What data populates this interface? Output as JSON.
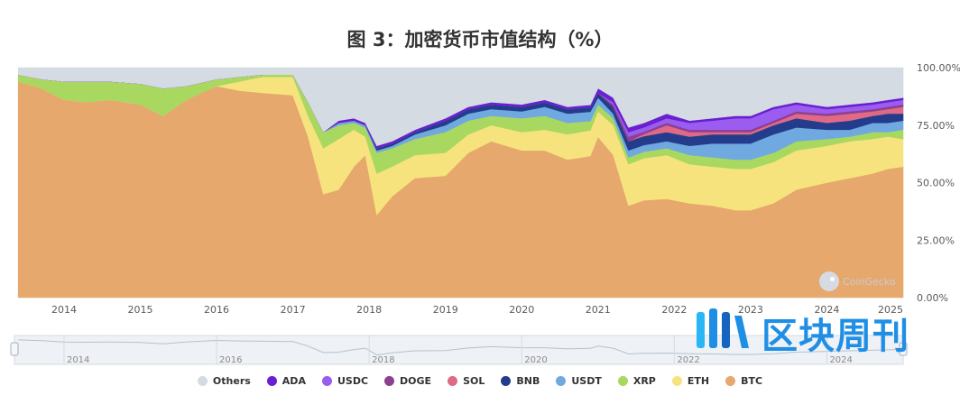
{
  "title": "图 3：加密货币市值结构（%）",
  "watermark": "CoinGecko",
  "brand": "区块周刊",
  "colors": {
    "Others": "#d5dbe3",
    "ADA": "#6a1fd1",
    "USDC": "#9b5cf0",
    "DOGE": "#8e3f91",
    "SOL": "#e06a86",
    "BNB": "#233d8c",
    "USDT": "#6fa9e0",
    "XRP": "#a9d861",
    "ETH": "#f7e37e",
    "BTC": "#e6a86c"
  },
  "chart_data": {
    "type": "area",
    "stacked": true,
    "percent": true,
    "x_axis_ticks": [
      "2014",
      "2015",
      "2016",
      "2017",
      "2018",
      "2019",
      "2020",
      "2021",
      "2022",
      "2023",
      "2024",
      "2025"
    ],
    "y_axis_ticks": [
      "100.00%",
      "75.00%",
      "50.00%",
      "25.00%",
      "0.00%"
    ],
    "ylim": [
      0,
      100
    ],
    "y_axis_position": "right",
    "legend_position": "bottom",
    "navigator_ticks": [
      "2014",
      "2016",
      "2018",
      "2020",
      "2022",
      "2024"
    ],
    "x": [
      2013.4,
      2013.7,
      2014.0,
      2014.3,
      2014.6,
      2015.0,
      2015.3,
      2015.6,
      2016.0,
      2016.3,
      2016.6,
      2017.0,
      2017.2,
      2017.4,
      2017.6,
      2017.8,
      2017.95,
      2018.1,
      2018.3,
      2018.6,
      2019.0,
      2019.3,
      2019.6,
      2020.0,
      2020.3,
      2020.6,
      2020.9,
      2021.0,
      2021.2,
      2021.4,
      2021.6,
      2021.9,
      2022.2,
      2022.5,
      2022.8,
      2023.0,
      2023.3,
      2023.6,
      2024.0,
      2024.3,
      2024.6,
      2024.8,
      2025.0
    ],
    "series": [
      {
        "name": "BTC",
        "values": [
          94,
          91,
          86,
          85,
          86,
          84,
          79,
          86,
          92,
          90,
          89,
          88,
          70,
          45,
          47,
          57,
          62,
          36,
          44,
          52,
          53,
          63,
          68,
          64,
          64,
          60,
          61,
          70,
          62,
          40,
          44,
          43,
          41,
          40,
          38,
          38,
          41,
          47,
          50,
          52,
          54,
          56,
          57
        ]
      },
      {
        "name": "ETH",
        "values": [
          0,
          0,
          0,
          0,
          0,
          0,
          0,
          0,
          0,
          4,
          7,
          8,
          9,
          20,
          22,
          16,
          8,
          18,
          13,
          10,
          10,
          8,
          7,
          8,
          9,
          11,
          11,
          11,
          13,
          18,
          19,
          19,
          17,
          17,
          18,
          18,
          18,
          17,
          16,
          16,
          15,
          14,
          12
        ]
      },
      {
        "name": "XRP",
        "values": [
          3,
          4,
          8,
          9,
          8,
          9,
          12,
          6,
          3,
          2,
          1,
          1,
          6,
          7,
          6,
          3,
          4,
          9,
          8,
          7,
          9,
          6,
          4,
          6,
          6,
          5,
          4,
          3,
          3,
          3,
          3,
          3,
          4,
          4,
          4,
          4,
          4,
          4,
          3,
          2,
          3,
          2,
          4
        ]
      },
      {
        "name": "USDT",
        "values": [
          0,
          0,
          0,
          0,
          0,
          0,
          0,
          0,
          0,
          0,
          0,
          0,
          0,
          0,
          1,
          1,
          1,
          1,
          1,
          2,
          3,
          3,
          3,
          3,
          4,
          4,
          4,
          3,
          2,
          3,
          3,
          3,
          4,
          6,
          7,
          7,
          8,
          6,
          4,
          3,
          4,
          4,
          4
        ]
      },
      {
        "name": "BNB",
        "values": [
          0,
          0,
          0,
          0,
          0,
          0,
          0,
          0,
          0,
          0,
          0,
          0,
          0,
          0,
          0,
          0,
          0,
          1,
          1,
          1,
          2,
          2,
          2,
          2,
          2,
          2,
          2,
          2,
          3,
          4,
          4,
          4,
          4,
          4,
          4,
          4,
          4,
          4,
          3,
          4,
          3,
          4,
          3
        ]
      },
      {
        "name": "SOL",
        "values": [
          0,
          0,
          0,
          0,
          0,
          0,
          0,
          0,
          0,
          0,
          0,
          0,
          0,
          0,
          0,
          0,
          0,
          0,
          0,
          0,
          0,
          0,
          0,
          0,
          0,
          0,
          0,
          0,
          0,
          0,
          1,
          3,
          2,
          1,
          1,
          1,
          1,
          2,
          3,
          3,
          2,
          2,
          3
        ]
      },
      {
        "name": "DOGE",
        "values": [
          0,
          0,
          0,
          0,
          0,
          0,
          0,
          0,
          0,
          0,
          0,
          0,
          0,
          0,
          0,
          0,
          0,
          0,
          0,
          0,
          0,
          0,
          0,
          0,
          0,
          0,
          0,
          0,
          1,
          2,
          1,
          1,
          1,
          1,
          1,
          1,
          1,
          1,
          1,
          1,
          1,
          1,
          1
        ]
      },
      {
        "name": "USDC",
        "values": [
          0,
          0,
          0,
          0,
          0,
          0,
          0,
          0,
          0,
          0,
          0,
          0,
          0,
          0,
          0,
          0,
          0,
          0,
          0,
          0,
          0,
          0,
          0,
          0,
          0,
          0,
          0,
          0,
          1,
          2,
          2,
          2,
          3,
          4,
          5,
          5,
          5,
          3,
          2,
          2,
          2,
          2,
          2
        ]
      },
      {
        "name": "ADA",
        "values": [
          0,
          0,
          0,
          0,
          0,
          0,
          0,
          0,
          0,
          0,
          0,
          0,
          0,
          0,
          1,
          1,
          1,
          1,
          1,
          1,
          1,
          1,
          1,
          1,
          1,
          1,
          1,
          2,
          2,
          2,
          2,
          2,
          1,
          1,
          1,
          1,
          1,
          1,
          1,
          1,
          1,
          1,
          1
        ]
      },
      {
        "name": "Others",
        "values": [
          3,
          5,
          6,
          6,
          6,
          7,
          9,
          8,
          5,
          4,
          3,
          3,
          15,
          28,
          23,
          22,
          24,
          34,
          32,
          27,
          22,
          17,
          15,
          16,
          14,
          17,
          16,
          9,
          13,
          26,
          25,
          20,
          23,
          22,
          21,
          21,
          17,
          15,
          17,
          16,
          15,
          14,
          13
        ]
      }
    ],
    "legend": [
      "Others",
      "ADA",
      "USDC",
      "DOGE",
      "SOL",
      "BNB",
      "USDT",
      "XRP",
      "ETH",
      "BTC"
    ]
  }
}
